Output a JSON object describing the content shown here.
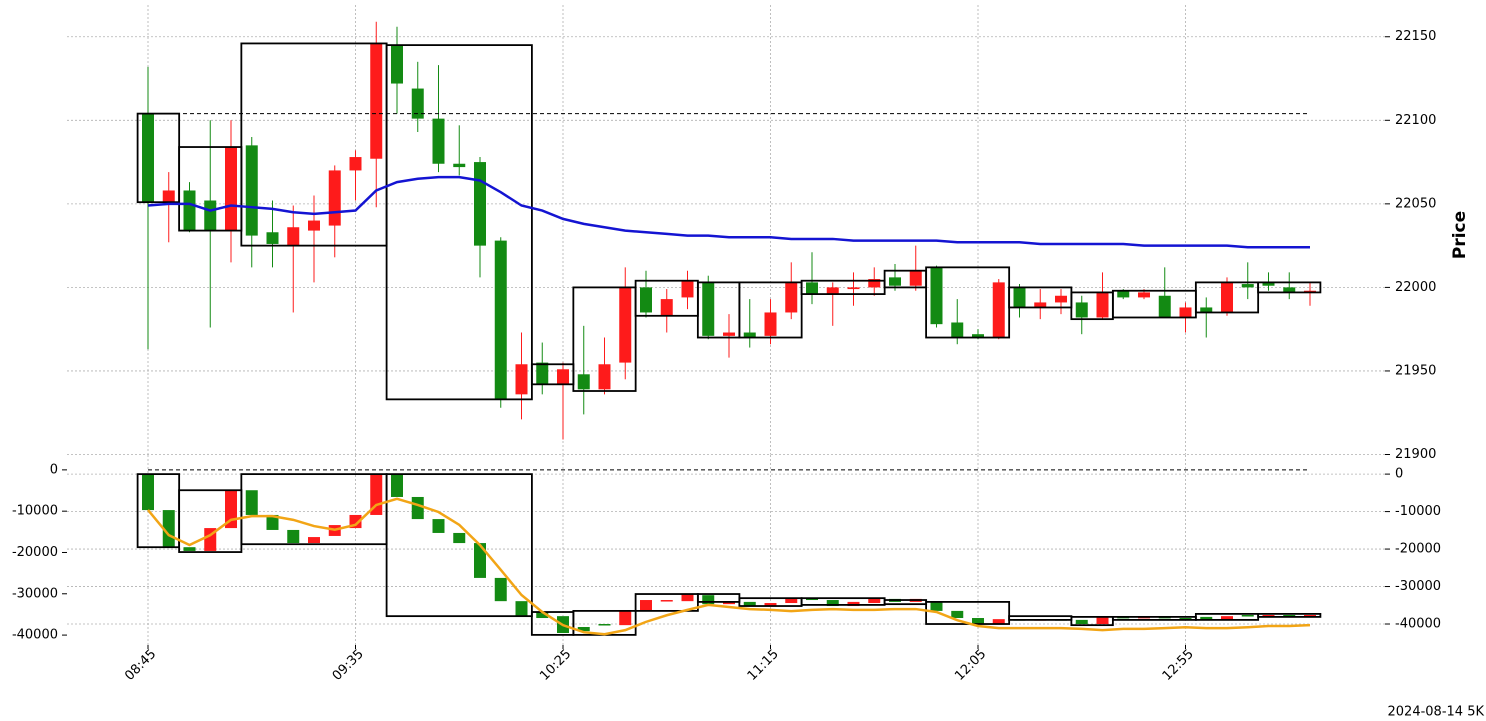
{
  "chart_data": [
    {
      "type": "candlestick",
      "ylabel": "Price",
      "yaxis_side": "right",
      "ylim": [
        21900,
        22169
      ],
      "yticks": [
        21900,
        21950,
        22000,
        22050,
        22100,
        22150
      ],
      "grid": true,
      "up_color": "#fe1b1b",
      "down_color": "#138a13",
      "open": [
        22104,
        22051,
        22058,
        22052,
        22034,
        22085,
        22033,
        22025,
        22034,
        22037,
        22070,
        22077,
        22145,
        22119,
        22101,
        22074,
        22075,
        22028,
        21936,
        21955,
        21942,
        21948,
        21939,
        21955,
        22000,
        21983,
        21994,
        22003,
        21971,
        21973,
        21971,
        21985,
        22003,
        21996,
        21999,
        22000,
        22006,
        22001,
        22012,
        21979,
        21972,
        21970,
        22000,
        21988,
        21991,
        21991,
        21982,
        21998,
        21994,
        21995,
        21982,
        21988,
        21985,
        22002,
        22003,
        22000,
        21997
      ],
      "high": [
        22132,
        22069,
        22063,
        22100,
        22100,
        22090,
        22052,
        22049,
        22055,
        22073,
        22082,
        22159,
        22156,
        22135,
        22133,
        22097,
        22078,
        22030,
        21973,
        21967,
        21955,
        21977,
        21970,
        22012,
        22010,
        21999,
        22010,
        22007,
        21984,
        21993,
        21993,
        22015,
        22021,
        22003,
        22009,
        22012,
        22014,
        22025,
        22013,
        21993,
        21975,
        22005,
        22002,
        21999,
        21999,
        21995,
        22009,
        21999,
        21999,
        22012,
        21991,
        21994,
        22006,
        22015,
        22009,
        22009,
        22003
      ],
      "low": [
        21963,
        22027,
        22033,
        21976,
        22015,
        22012,
        22012,
        21985,
        22003,
        22018,
        22052,
        22048,
        22104,
        22093,
        22069,
        22067,
        22006,
        21928,
        21921,
        21936,
        21909,
        21924,
        21936,
        21945,
        21982,
        21973,
        21987,
        21969,
        21958,
        21964,
        21966,
        21981,
        21990,
        21977,
        21989,
        21995,
        21998,
        21998,
        21976,
        21966,
        21969,
        21969,
        21982,
        21981,
        21984,
        21972,
        21981,
        21993,
        21993,
        21982,
        21973,
        21970,
        21983,
        21993,
        21998,
        21993,
        21989
      ],
      "close": [
        22051,
        22058,
        22034,
        22034,
        22084,
        22031,
        22026,
        22036,
        22040,
        22070,
        22078,
        22146,
        22122,
        22101,
        22074,
        22072,
        22025,
        21933,
        21954,
        21942,
        21951,
        21939,
        21954,
        22000,
        21985,
        21993,
        22004,
        21971,
        21973,
        21970,
        21985,
        22003,
        21996,
        22000,
        22000,
        22005,
        22001,
        22010,
        21978,
        21970,
        21970,
        22003,
        21988,
        21991,
        21995,
        21982,
        21997,
        21994,
        21997,
        21982,
        21988,
        21985,
        22003,
        22000,
        22001,
        21997,
        21998
      ],
      "boxes": [
        {
          "start": 0,
          "end": 1,
          "top": 22104,
          "bottom": 22051
        },
        {
          "start": 2,
          "end": 4,
          "top": 22084,
          "bottom": 22034
        },
        {
          "start": 5,
          "end": 11,
          "top": 22146,
          "bottom": 22025
        },
        {
          "start": 12,
          "end": 18,
          "top": 22145,
          "bottom": 21933
        },
        {
          "start": 19,
          "end": 20,
          "top": 21954,
          "bottom": 21942
        },
        {
          "start": 21,
          "end": 23,
          "top": 22000,
          "bottom": 21938
        },
        {
          "start": 24,
          "end": 26,
          "top": 22004,
          "bottom": 21983
        },
        {
          "start": 27,
          "end": 28,
          "top": 22003,
          "bottom": 21970
        },
        {
          "start": 29,
          "end": 31,
          "top": 22003,
          "bottom": 21970
        },
        {
          "start": 32,
          "end": 35,
          "top": 22004,
          "bottom": 21996
        },
        {
          "start": 36,
          "end": 37,
          "top": 22010,
          "bottom": 22000
        },
        {
          "start": 38,
          "end": 41,
          "top": 22012,
          "bottom": 21970
        },
        {
          "start": 42,
          "end": 44,
          "top": 22000,
          "bottom": 21988
        },
        {
          "start": 45,
          "end": 46,
          "top": 21997,
          "bottom": 21981
        },
        {
          "start": 47,
          "end": 50,
          "top": 21998,
          "bottom": 21982
        },
        {
          "start": 51,
          "end": 53,
          "top": 22003,
          "bottom": 21985
        },
        {
          "start": 54,
          "end": 56,
          "top": 22003,
          "bottom": 21997
        }
      ],
      "box_color": "#000000",
      "hline": 22104,
      "line_color": "#1414d2",
      "line_values": [
        22049,
        22050,
        22050,
        22046,
        22049,
        22048,
        22047,
        22045,
        22044,
        22045,
        22046,
        22058,
        22063,
        22065,
        22066,
        22066,
        22064,
        22057,
        22049,
        22046,
        22041,
        22038,
        22036,
        22034,
        22033,
        22032,
        22031,
        22031,
        22030,
        22030,
        22030,
        22029,
        22029,
        22029,
        22028,
        22028,
        22028,
        22028,
        22028,
        22027,
        22027,
        22027,
        22027,
        22026,
        22026,
        22026,
        22026,
        22026,
        22025,
        22025,
        22025,
        22025,
        22025,
        22024,
        22024,
        22024,
        22024
      ]
    },
    {
      "type": "candlestick",
      "categories": [
        "08:45",
        null,
        null,
        null,
        null,
        null,
        null,
        null,
        null,
        null,
        "09:35",
        null,
        null,
        null,
        null,
        null,
        null,
        null,
        null,
        null,
        "10:25",
        null,
        null,
        null,
        null,
        null,
        null,
        null,
        null,
        null,
        "11:15",
        null,
        null,
        null,
        null,
        null,
        null,
        null,
        null,
        null,
        "12:05",
        null,
        null,
        null,
        null,
        null,
        null,
        null,
        null,
        null,
        "12:55",
        null,
        null,
        null,
        null,
        null,
        null
      ],
      "yaxis_side": "left",
      "ylim": [
        -42400,
        3600
      ],
      "yticks": [
        -40000,
        -30000,
        -20000,
        -10000,
        0
      ],
      "y2lim": [
        -45600,
        5100
      ],
      "y2ticks": [
        -40000,
        -30000,
        -20000,
        -10000,
        0
      ],
      "grid": true,
      "candle_axis": "y2",
      "up_color": "#fe1b1b",
      "down_color": "#138a13",
      "open": [
        0,
        -9600,
        -19500,
        -20500,
        -14400,
        -4300,
        -10900,
        -14900,
        -18400,
        -16500,
        -14400,
        -10900,
        0,
        -6100,
        -12000,
        -15700,
        -18400,
        -27700,
        -33900,
        -36800,
        -37900,
        -40800,
        -40000,
        -40300,
        -36500,
        -33900,
        -33900,
        -32300,
        -34700,
        -34100,
        -35200,
        -34400,
        -33100,
        -33600,
        -35200,
        -34400,
        -33300,
        -34100,
        -34100,
        -36500,
        -38400,
        -40000,
        -38700,
        -38900,
        -38700,
        -38900,
        -40000,
        -38100,
        -38400,
        -38100,
        -38400,
        -38100,
        -38900,
        -37600,
        -37900,
        -37600,
        -37900
      ],
      "close": [
        -9600,
        -19500,
        -20500,
        -14400,
        -4300,
        -10900,
        -14900,
        -18400,
        -16800,
        -13600,
        -10900,
        0,
        -6100,
        -12000,
        -15700,
        -18400,
        -27700,
        -33900,
        -37900,
        -38400,
        -42400,
        -41900,
        -40300,
        -36500,
        -33600,
        -33600,
        -32000,
        -34700,
        -34100,
        -35200,
        -34400,
        -33100,
        -33600,
        -35200,
        -34100,
        -33100,
        -34100,
        -33300,
        -36500,
        -38400,
        -40000,
        -38700,
        -38900,
        -38700,
        -38900,
        -40000,
        -38100,
        -38400,
        -38100,
        -38400,
        -38900,
        -38900,
        -37900,
        -37900,
        -37600,
        -37900,
        -37600
      ],
      "boxes": [
        {
          "start": 0,
          "end": 1,
          "top": 0,
          "bottom": -19500
        },
        {
          "start": 2,
          "end": 4,
          "top": -4300,
          "bottom": -20800
        },
        {
          "start": 5,
          "end": 11,
          "top": 0,
          "bottom": -18700
        },
        {
          "start": 12,
          "end": 18,
          "top": 0,
          "bottom": -37900
        },
        {
          "start": 19,
          "end": 20,
          "top": -36800,
          "bottom": -42900
        },
        {
          "start": 21,
          "end": 23,
          "top": -36500,
          "bottom": -42900
        },
        {
          "start": 24,
          "end": 26,
          "top": -32000,
          "bottom": -36500
        },
        {
          "start": 27,
          "end": 28,
          "top": -32000,
          "bottom": -34100
        },
        {
          "start": 29,
          "end": 31,
          "top": -33100,
          "bottom": -35200
        },
        {
          "start": 32,
          "end": 35,
          "top": -33100,
          "bottom": -34900
        },
        {
          "start": 36,
          "end": 37,
          "top": -33600,
          "bottom": -34700
        },
        {
          "start": 38,
          "end": 41,
          "top": -34100,
          "bottom": -40000
        },
        {
          "start": 42,
          "end": 44,
          "top": -37900,
          "bottom": -38900
        },
        {
          "start": 45,
          "end": 46,
          "top": -38100,
          "bottom": -40300
        },
        {
          "start": 47,
          "end": 50,
          "top": -38100,
          "bottom": -38900
        },
        {
          "start": 51,
          "end": 53,
          "top": -37300,
          "bottom": -38900
        },
        {
          "start": 54,
          "end": 56,
          "top": -37300,
          "bottom": -38100
        }
      ],
      "box_color": "#000000",
      "hline": 0,
      "line_color": "#f2a516",
      "line_values": [
        -9700,
        -15800,
        -18200,
        -15800,
        -12100,
        -11200,
        -11200,
        -12100,
        -13600,
        -14500,
        -13300,
        -8500,
        -7000,
        -8500,
        -10200,
        -13300,
        -18200,
        -24200,
        -30300,
        -34400,
        -37600,
        -39300,
        -39800,
        -38800,
        -36800,
        -35200,
        -33900,
        -32700,
        -33200,
        -33700,
        -33900,
        -34200,
        -33900,
        -33700,
        -33900,
        -33900,
        -33700,
        -33700,
        -34400,
        -36400,
        -37800,
        -38300,
        -38300,
        -38300,
        -38300,
        -38500,
        -38800,
        -38500,
        -38500,
        -38300,
        -38100,
        -38300,
        -38300,
        -38100,
        -37800,
        -37800,
        -37600
      ],
      "annotation": "2024-08-14 5K"
    }
  ]
}
